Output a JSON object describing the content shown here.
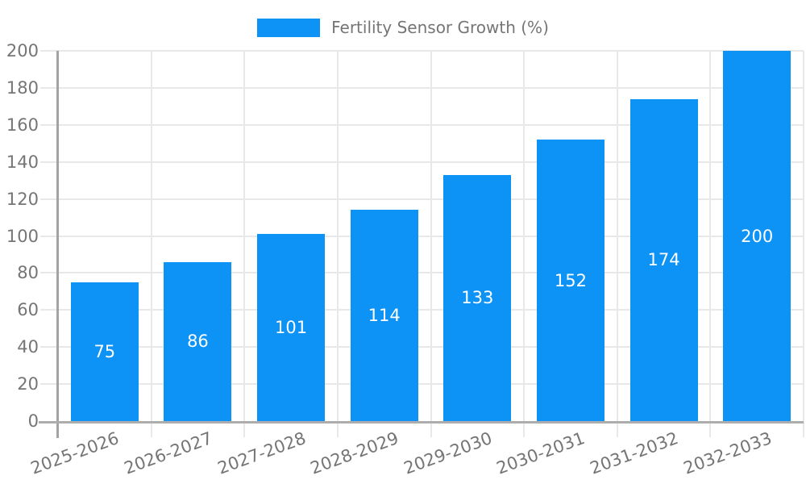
{
  "chart_data": {
    "type": "bar",
    "title": "",
    "legend": {
      "label": "Fertility Sensor Growth (%)",
      "position": "top-center"
    },
    "categories": [
      "2025-2026",
      "2026-2027",
      "2027-2028",
      "2028-2029",
      "2029-2030",
      "2030-2031",
      "2031-2032",
      "2032-2033"
    ],
    "series": [
      {
        "name": "Fertility Sensor Growth (%)",
        "values": [
          75,
          86,
          101,
          114,
          133,
          152,
          174,
          200
        ]
      }
    ],
    "value_labels_shown_inside_bars": true,
    "xlabel": "",
    "ylabel": "",
    "ylim": [
      0,
      200
    ],
    "yticks": [
      0,
      20,
      40,
      60,
      80,
      100,
      120,
      140,
      160,
      180,
      200
    ],
    "grid": true,
    "x_label_rotation_deg": -20,
    "colors": {
      "bar": "#0d92f6",
      "bar_value_label": "#ffffff",
      "axis_text": "#757575",
      "gridline": "#e8e8e8",
      "axis_line": "#a3a3a3"
    }
  }
}
